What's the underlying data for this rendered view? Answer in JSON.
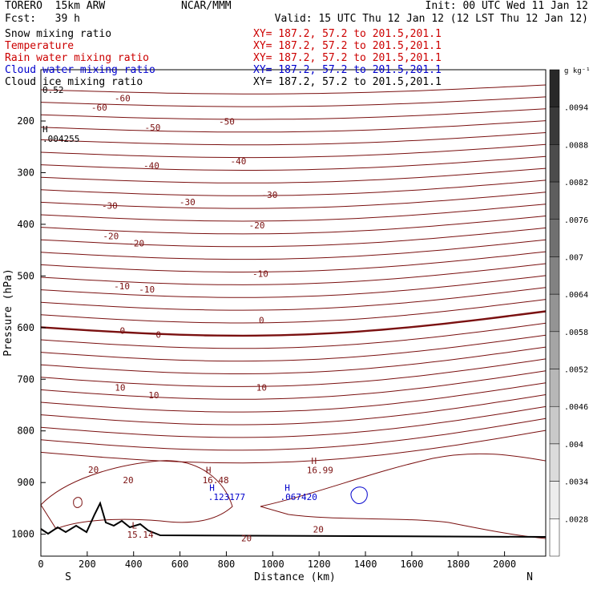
{
  "header": {
    "model": "TORERO  15km ARW",
    "org": "NCAR/MMM",
    "init": "Init: 00 UTC Wed 11 Jan 12",
    "fcst": "Fcst:   39 h",
    "valid": "Valid: 15 UTC Thu 12 Jan 12 (12 LST Thu 12 Jan 12)",
    "fields": [
      {
        "name": "Snow mixing ratio",
        "xy": "XY= 187.2, 57.2 to 201.5,201.1",
        "color": "#000000",
        "xy_color": "#cc0000"
      },
      {
        "name": "Temperature",
        "xy": "XY= 187.2, 57.2 to 201.5,201.1",
        "color": "#cc0000",
        "xy_color": "#cc0000"
      },
      {
        "name": "Rain water mixing ratio",
        "xy": "XY= 187.2, 57.2 to 201.5,201.1",
        "color": "#cc0000",
        "xy_color": "#cc0000"
      },
      {
        "name": "Cloud water mixing ratio",
        "xy": "XY= 187.2, 57.2 to 201.5,201.1",
        "color": "#0000cc",
        "xy_color": "#0000cc"
      },
      {
        "name": "Cloud ice mixing ratio",
        "xy": "XY= 187.2, 57.2 to 201.5,201.1",
        "color": "#000000",
        "xy_color": "#000000"
      }
    ]
  },
  "chart_data": {
    "type": "contour",
    "xlabel": "Distance (km)",
    "ylabel": "Pressure (hPa)",
    "xlim": [
      0,
      2180
    ],
    "ylim": [
      1045,
      118
    ],
    "x_ticks": [
      0,
      200,
      400,
      600,
      800,
      1000,
      1200,
      1400,
      1600,
      1800,
      2000
    ],
    "y_ticks": [
      200,
      300,
      400,
      500,
      600,
      700,
      800,
      900,
      1000
    ],
    "endpoint_labels": {
      "left": "S",
      "right": "N"
    },
    "contour_color": "#7a1010",
    "contour_labels": [
      {
        "text": "-60",
        "x": 680,
        "p": 180
      },
      {
        "text": "-60",
        "x": 880,
        "p": 162
      },
      {
        "text": "-50",
        "x": 1140,
        "p": 219
      },
      {
        "text": "-50",
        "x": 1780,
        "p": 207
      },
      {
        "text": "-40",
        "x": 1130,
        "p": 292
      },
      {
        "text": "-40",
        "x": 1880,
        "p": 284
      },
      {
        "text": "-30",
        "x": 770,
        "p": 370
      },
      {
        "text": "-30",
        "x": 1440,
        "p": 363
      },
      {
        "text": "-30",
        "x": 2150,
        "p": 349
      },
      {
        "text": "-20",
        "x": 780,
        "p": 429
      },
      {
        "text": "-20",
        "x": 1000,
        "p": 443
      },
      {
        "text": "-20",
        "x": 2040,
        "p": 408
      },
      {
        "text": "-10",
        "x": 875,
        "p": 526
      },
      {
        "text": "-10",
        "x": 1090,
        "p": 532
      },
      {
        "text": "-10",
        "x": 2070,
        "p": 502
      },
      {
        "text": "0",
        "x": 880,
        "p": 612
      },
      {
        "text": "0",
        "x": 1190,
        "p": 620
      },
      {
        "text": "0",
        "x": 2080,
        "p": 592
      },
      {
        "text": "10",
        "x": 860,
        "p": 722
      },
      {
        "text": "10",
        "x": 1150,
        "p": 737
      },
      {
        "text": "10",
        "x": 2080,
        "p": 722
      },
      {
        "text": "20",
        "x": 630,
        "p": 881
      },
      {
        "text": "20",
        "x": 930,
        "p": 901
      },
      {
        "text": "20",
        "x": 1950,
        "p": 1014
      },
      {
        "text": "20",
        "x": 2570,
        "p": 997
      }
    ],
    "annotations": [
      {
        "text": "H",
        "x": 5,
        "p": 222,
        "color": "#000000"
      },
      {
        "text": ".004255",
        "x": 0,
        "p": 240,
        "color": "#000000"
      },
      {
        "text": "H",
        "x": 1420,
        "p": 882,
        "color": "#7a1010"
      },
      {
        "text": "16.48",
        "x": 1390,
        "p": 901,
        "color": "#7a1010"
      },
      {
        "text": "H",
        "x": 2330,
        "p": 864,
        "color": "#7a1010"
      },
      {
        "text": "16.99",
        "x": 2290,
        "p": 882,
        "color": "#7a1010"
      },
      {
        "text": "H",
        "x": 1450,
        "p": 916,
        "color": "#0000cc"
      },
      {
        "text": ".123177",
        "x": 1440,
        "p": 934,
        "color": "#0000cc"
      },
      {
        "text": "H",
        "x": 2100,
        "p": 916,
        "color": "#0000cc"
      },
      {
        "text": ".067420",
        "x": 2060,
        "p": 934,
        "color": "#0000cc"
      },
      {
        "text": "L",
        "x": 780,
        "p": 989,
        "color": "#7a1010"
      },
      {
        "text": "15.14",
        "x": 740,
        "p": 1007,
        "color": "#7a1010"
      },
      {
        "text": "0.52",
        "x": 5,
        "p": 146,
        "color": "#000000"
      }
    ],
    "colorbar": {
      "unit": "g kg⁻¹",
      "labels": [
        ".0094",
        ".0088",
        ".0082",
        ".0076",
        ".007",
        ".0064",
        ".0058",
        ".0052",
        ".0046",
        ".004",
        ".0034",
        ".0028"
      ]
    }
  }
}
